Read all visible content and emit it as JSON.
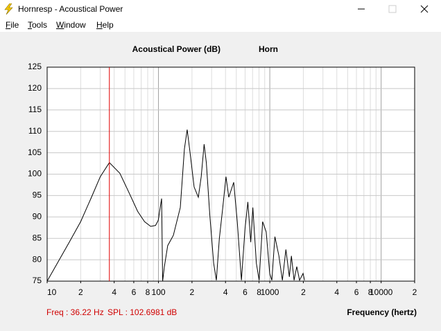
{
  "window": {
    "title": "Hornresp - Acoustical Power",
    "menu": [
      "File",
      "Tools",
      "Window",
      "Help"
    ]
  },
  "chart_data": {
    "type": "line",
    "title": "Acoustical Power (dB)",
    "subtitle": "Horn",
    "x_label": "Frequency (hertz)",
    "log_x": true,
    "grid": true,
    "minor_grid": true,
    "color": "#000000",
    "xlim": [
      10,
      20000
    ],
    "ylim": [
      75,
      125
    ],
    "xticks": [
      10,
      {
        "value": 20,
        "label": "2"
      },
      {
        "value": 40,
        "label": "4"
      },
      {
        "value": 60,
        "label": "6"
      },
      {
        "value": 80,
        "label": "8"
      },
      100,
      {
        "value": 200,
        "label": "2"
      },
      {
        "value": 400,
        "label": "4"
      },
      {
        "value": 600,
        "label": "6"
      },
      {
        "value": 800,
        "label": "8"
      },
      1000,
      {
        "value": 2000,
        "label": "2"
      },
      {
        "value": 4000,
        "label": "4"
      },
      {
        "value": 6000,
        "label": "6"
      },
      {
        "value": 8000,
        "label": "8"
      },
      10000,
      {
        "value": 20000,
        "label": "2"
      }
    ],
    "yticks": [
      75,
      80,
      85,
      90,
      95,
      100,
      105,
      110,
      115,
      120,
      125
    ],
    "x": [
      10,
      15.8,
      20,
      25,
      30,
      36.22,
      45,
      55,
      65,
      75,
      85,
      94,
      99.5,
      106.7,
      109,
      113,
      121,
      136,
      157,
      171,
      181,
      192,
      209,
      228,
      242,
      257,
      269,
      289,
      313,
      331,
      352,
      378,
      404,
      428,
      474,
      510,
      556,
      599,
      635,
      674,
      704,
      757,
      802,
      862,
      928,
      998,
      1043,
      1111,
      1207,
      1297,
      1395,
      1498,
      1563,
      1652,
      1747,
      1850,
      1990,
      2050
    ],
    "values": [
      75,
      84.1,
      88.9,
      94.6,
      99.4,
      102.7,
      100.2,
      95.4,
      91.3,
      88.9,
      87.8,
      88,
      89.2,
      94.3,
      75,
      78.4,
      83.3,
      85.7,
      92.2,
      105.9,
      110.4,
      105.1,
      97,
      94.6,
      99.4,
      107,
      102.7,
      90.5,
      79.2,
      75.2,
      84.9,
      92.2,
      99.4,
      94.6,
      98.1,
      88.9,
      75.2,
      87.3,
      93.5,
      84.1,
      92.2,
      79.2,
      75.2,
      88.9,
      86.5,
      76.8,
      75.2,
      85.4,
      80.9,
      75.2,
      82.4,
      76,
      80.9,
      75.2,
      78.4,
      75.2,
      76.8,
      75.2
    ],
    "cursor": {
      "x": 36.22,
      "color": "#e00000"
    },
    "readouts": [
      "Freq : 36.22 Hz",
      "SPL : 102.6981 dB"
    ]
  }
}
